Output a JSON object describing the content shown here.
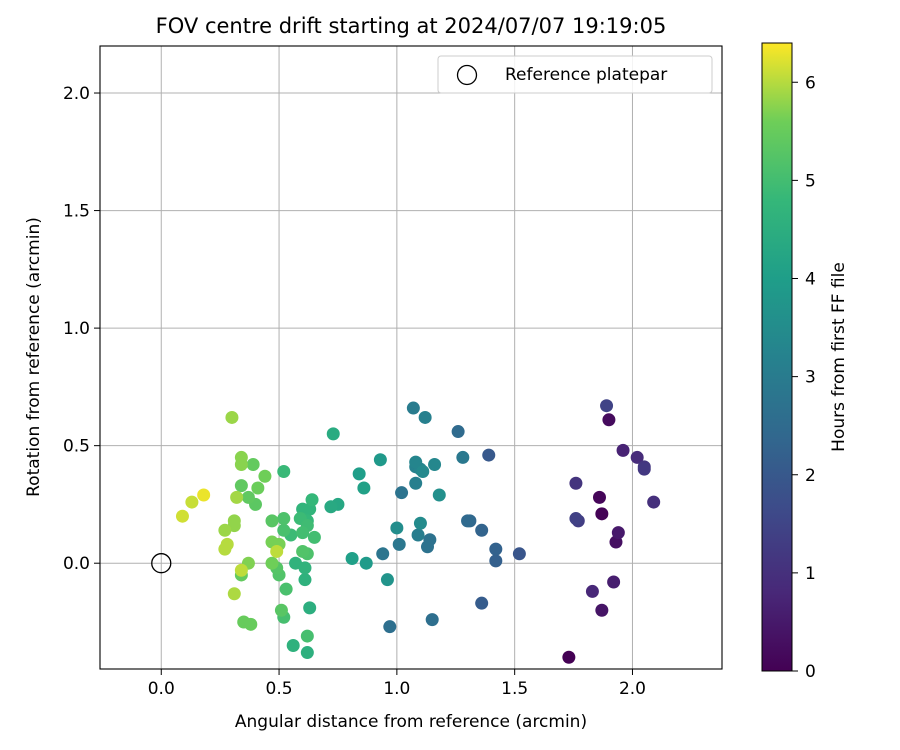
{
  "chart_data": {
    "type": "scatter",
    "title": "FOV centre drift starting at 2024/07/07 19:19:05",
    "xlabel": "Angular distance from reference (arcmin)",
    "ylabel": "Rotation from reference (arcmin)",
    "xlim": [
      -0.26,
      2.38
    ],
    "ylim": [
      -0.45,
      2.2
    ],
    "xticks": [
      {
        "value": 0.0,
        "label": "0.0"
      },
      {
        "value": 0.5,
        "label": "0.5"
      },
      {
        "value": 1.0,
        "label": "1.0"
      },
      {
        "value": 1.5,
        "label": "1.5"
      },
      {
        "value": 2.0,
        "label": "2.0"
      }
    ],
    "yticks": [
      {
        "value": 0.0,
        "label": "0.0"
      },
      {
        "value": 0.5,
        "label": "0.5"
      },
      {
        "value": 1.0,
        "label": "1.0"
      },
      {
        "value": 1.5,
        "label": "1.5"
      },
      {
        "value": 2.0,
        "label": "2.0"
      }
    ],
    "grid": true,
    "legend": {
      "placement": "top-right",
      "entries": [
        "Reference platepar"
      ]
    },
    "reference_point": {
      "x": 0.0,
      "y": 0.0,
      "label": "Reference platepar"
    },
    "colorbar": {
      "label": "Hours from first FF file",
      "colormap": "viridis",
      "range": [
        0,
        6.4
      ],
      "ticks": [
        {
          "value": 0,
          "label": "0"
        },
        {
          "value": 1,
          "label": "1"
        },
        {
          "value": 2,
          "label": "2"
        },
        {
          "value": 3,
          "label": "3"
        },
        {
          "value": 4,
          "label": "4"
        },
        {
          "value": 5,
          "label": "5"
        },
        {
          "value": 6,
          "label": "6"
        }
      ]
    },
    "series": [
      {
        "points": [
          {
            "x": 1.73,
            "y": -0.4,
            "c": 0.0
          },
          {
            "x": 1.87,
            "y": 0.21,
            "c": 0.05
          },
          {
            "x": 1.86,
            "y": 0.28,
            "c": 0.1
          },
          {
            "x": 1.9,
            "y": 0.61,
            "c": 0.2
          },
          {
            "x": 1.93,
            "y": 0.09,
            "c": 0.3
          },
          {
            "x": 1.87,
            "y": -0.2,
            "c": 0.4
          },
          {
            "x": 1.94,
            "y": 0.13,
            "c": 0.5
          },
          {
            "x": 1.92,
            "y": -0.08,
            "c": 0.6
          },
          {
            "x": 1.96,
            "y": 0.48,
            "c": 0.7
          },
          {
            "x": 1.83,
            "y": -0.12,
            "c": 0.8
          },
          {
            "x": 2.02,
            "y": 0.45,
            "c": 0.9
          },
          {
            "x": 2.09,
            "y": 0.26,
            "c": 1.0
          },
          {
            "x": 1.76,
            "y": 0.34,
            "c": 1.1
          },
          {
            "x": 2.05,
            "y": 0.41,
            "c": 1.15
          },
          {
            "x": 2.05,
            "y": 0.4,
            "c": 1.2
          },
          {
            "x": 1.77,
            "y": 0.18,
            "c": 1.3
          },
          {
            "x": 1.76,
            "y": 0.19,
            "c": 1.4
          },
          {
            "x": 1.89,
            "y": 0.67,
            "c": 1.45
          },
          {
            "x": 1.52,
            "y": 0.04,
            "c": 1.9
          },
          {
            "x": 1.39,
            "y": 0.46,
            "c": 2.0
          },
          {
            "x": 1.36,
            "y": -0.17,
            "c": 2.1
          },
          {
            "x": 1.42,
            "y": 0.01,
            "c": 2.2
          },
          {
            "x": 1.42,
            "y": 0.06,
            "c": 2.25
          },
          {
            "x": 1.36,
            "y": 0.14,
            "c": 2.3
          },
          {
            "x": 1.31,
            "y": 0.18,
            "c": 2.4
          },
          {
            "x": 1.3,
            "y": 0.18,
            "c": 2.45
          },
          {
            "x": 1.26,
            "y": 0.56,
            "c": 2.5
          },
          {
            "x": 1.15,
            "y": -0.24,
            "c": 2.6
          },
          {
            "x": 0.97,
            "y": -0.27,
            "c": 2.6
          },
          {
            "x": 1.13,
            "y": 0.07,
            "c": 2.7
          },
          {
            "x": 1.14,
            "y": 0.1,
            "c": 2.7
          },
          {
            "x": 1.02,
            "y": 0.3,
            "c": 2.75
          },
          {
            "x": 0.94,
            "y": 0.04,
            "c": 2.8
          },
          {
            "x": 1.01,
            "y": 0.08,
            "c": 2.85
          },
          {
            "x": 1.28,
            "y": 0.45,
            "c": 2.9
          },
          {
            "x": 1.07,
            "y": 0.66,
            "c": 3.0
          },
          {
            "x": 1.09,
            "y": 0.12,
            "c": 3.05
          },
          {
            "x": 1.08,
            "y": 0.34,
            "c": 3.1
          },
          {
            "x": 1.12,
            "y": 0.62,
            "c": 3.15
          },
          {
            "x": 1.08,
            "y": 0.41,
            "c": 3.2
          },
          {
            "x": 1.1,
            "y": 0.4,
            "c": 3.25
          },
          {
            "x": 1.08,
            "y": 0.43,
            "c": 3.3
          },
          {
            "x": 1.16,
            "y": 0.42,
            "c": 3.35
          },
          {
            "x": 1.11,
            "y": 0.39,
            "c": 3.4
          },
          {
            "x": 1.1,
            "y": 0.17,
            "c": 3.45
          },
          {
            "x": 1.0,
            "y": 0.15,
            "c": 3.5
          },
          {
            "x": 1.18,
            "y": 0.29,
            "c": 3.6
          },
          {
            "x": 0.96,
            "y": -0.07,
            "c": 3.7
          },
          {
            "x": 0.93,
            "y": 0.44,
            "c": 3.85
          },
          {
            "x": 0.87,
            "y": 0.0,
            "c": 3.9
          },
          {
            "x": 0.84,
            "y": 0.38,
            "c": 4.0
          },
          {
            "x": 0.81,
            "y": 0.02,
            "c": 4.05
          },
          {
            "x": 0.86,
            "y": 0.32,
            "c": 4.1
          },
          {
            "x": 0.75,
            "y": 0.25,
            "c": 4.3
          },
          {
            "x": 0.72,
            "y": 0.24,
            "c": 4.35
          },
          {
            "x": 0.73,
            "y": 0.55,
            "c": 4.4
          },
          {
            "x": 0.63,
            "y": -0.19,
            "c": 4.5
          },
          {
            "x": 0.62,
            "y": -0.38,
            "c": 4.55
          },
          {
            "x": 0.56,
            "y": -0.35,
            "c": 4.6
          },
          {
            "x": 0.61,
            "y": -0.07,
            "c": 4.6
          },
          {
            "x": 0.57,
            "y": 0.0,
            "c": 4.65
          },
          {
            "x": 0.61,
            "y": -0.02,
            "c": 4.65
          },
          {
            "x": 0.6,
            "y": 0.23,
            "c": 4.7
          },
          {
            "x": 0.63,
            "y": 0.23,
            "c": 4.7
          },
          {
            "x": 0.6,
            "y": 0.19,
            "c": 4.75
          },
          {
            "x": 0.62,
            "y": 0.18,
            "c": 4.8
          },
          {
            "x": 0.64,
            "y": 0.27,
            "c": 4.8
          },
          {
            "x": 0.52,
            "y": 0.39,
            "c": 4.85
          },
          {
            "x": 0.55,
            "y": 0.12,
            "c": 4.9
          },
          {
            "x": 0.59,
            "y": 0.19,
            "c": 4.9
          },
          {
            "x": 0.62,
            "y": 0.16,
            "c": 4.95
          },
          {
            "x": 0.65,
            "y": 0.11,
            "c": 5.0
          },
          {
            "x": 0.6,
            "y": 0.13,
            "c": 5.0
          },
          {
            "x": 0.62,
            "y": -0.31,
            "c": 5.05
          },
          {
            "x": 0.52,
            "y": -0.23,
            "c": 5.05
          },
          {
            "x": 0.53,
            "y": -0.11,
            "c": 5.1
          },
          {
            "x": 0.52,
            "y": 0.14,
            "c": 5.1
          },
          {
            "x": 0.52,
            "y": 0.19,
            "c": 5.15
          },
          {
            "x": 0.62,
            "y": 0.04,
            "c": 5.15
          },
          {
            "x": 0.6,
            "y": 0.05,
            "c": 5.2
          },
          {
            "x": 0.5,
            "y": -0.05,
            "c": 5.2
          },
          {
            "x": 0.49,
            "y": -0.02,
            "c": 5.25
          },
          {
            "x": 0.51,
            "y": -0.2,
            "c": 5.3
          },
          {
            "x": 0.47,
            "y": 0.18,
            "c": 5.3
          },
          {
            "x": 0.4,
            "y": 0.25,
            "c": 5.35
          },
          {
            "x": 0.37,
            "y": 0.28,
            "c": 5.4
          },
          {
            "x": 0.34,
            "y": 0.33,
            "c": 5.4
          },
          {
            "x": 0.39,
            "y": 0.42,
            "c": 5.45
          },
          {
            "x": 0.34,
            "y": -0.05,
            "c": 5.45
          },
          {
            "x": 0.35,
            "y": -0.25,
            "c": 5.5
          },
          {
            "x": 0.38,
            "y": -0.26,
            "c": 5.5
          },
          {
            "x": 0.41,
            "y": 0.32,
            "c": 5.55
          },
          {
            "x": 0.44,
            "y": 0.37,
            "c": 5.6
          },
          {
            "x": 0.47,
            "y": 0.0,
            "c": 5.6
          },
          {
            "x": 0.47,
            "y": 0.09,
            "c": 5.65
          },
          {
            "x": 0.5,
            "y": 0.08,
            "c": 5.65
          },
          {
            "x": 0.37,
            "y": 0.0,
            "c": 5.7
          },
          {
            "x": 0.34,
            "y": 0.42,
            "c": 5.75
          },
          {
            "x": 0.34,
            "y": 0.45,
            "c": 5.75
          },
          {
            "x": 0.31,
            "y": 0.16,
            "c": 5.8
          },
          {
            "x": 0.31,
            "y": 0.18,
            "c": 5.8
          },
          {
            "x": 0.27,
            "y": 0.14,
            "c": 5.85
          },
          {
            "x": 0.3,
            "y": 0.62,
            "c": 5.85
          },
          {
            "x": 0.32,
            "y": 0.28,
            "c": 5.9
          },
          {
            "x": 0.31,
            "y": -0.13,
            "c": 5.95
          },
          {
            "x": 0.28,
            "y": 0.08,
            "c": 6.0
          },
          {
            "x": 0.27,
            "y": 0.06,
            "c": 6.0
          },
          {
            "x": 0.34,
            "y": -0.03,
            "c": 6.05
          },
          {
            "x": 0.49,
            "y": 0.05,
            "c": 6.05
          },
          {
            "x": 0.13,
            "y": 0.26,
            "c": 6.1
          },
          {
            "x": 0.09,
            "y": 0.2,
            "c": 6.15
          },
          {
            "x": 0.18,
            "y": 0.29,
            "c": 6.3
          }
        ]
      }
    ]
  }
}
